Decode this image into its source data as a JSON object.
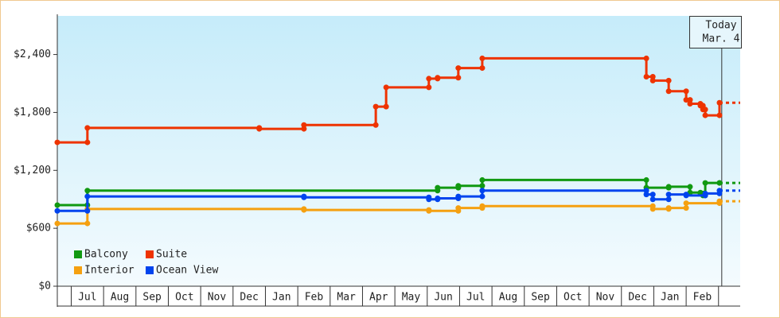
{
  "chart_data": {
    "type": "step-line",
    "xlim": [
      0.57,
      21.67
    ],
    "ylim": [
      0,
      2800
    ],
    "yticks": [
      {
        "value": 0,
        "label": "$0"
      },
      {
        "value": 600,
        "label": "$600"
      },
      {
        "value": 1200,
        "label": "$1,200"
      },
      {
        "value": 1800,
        "label": "$1,800"
      },
      {
        "value": 2400,
        "label": "$2,400"
      }
    ],
    "xticks": [
      {
        "value": 1,
        "label": "Jul"
      },
      {
        "value": 2,
        "label": "Aug"
      },
      {
        "value": 3,
        "label": "Sep"
      },
      {
        "value": 4,
        "label": "Oct"
      },
      {
        "value": 5,
        "label": "Nov"
      },
      {
        "value": 6,
        "label": "Dec"
      },
      {
        "value": 7,
        "label": "Jan"
      },
      {
        "value": 8,
        "label": "Feb"
      },
      {
        "value": 9,
        "label": "Mar"
      },
      {
        "value": 10,
        "label": "Apr"
      },
      {
        "value": 11,
        "label": "May"
      },
      {
        "value": 12,
        "label": "Jun"
      },
      {
        "value": 13,
        "label": "Jul"
      },
      {
        "value": 14,
        "label": "Aug"
      },
      {
        "value": 15,
        "label": "Sep"
      },
      {
        "value": 16,
        "label": "Oct"
      },
      {
        "value": 17,
        "label": "Nov"
      },
      {
        "value": 18,
        "label": "Dec"
      },
      {
        "value": 19,
        "label": "Jan"
      },
      {
        "value": 20,
        "label": "Feb"
      }
    ],
    "legend": "lower left",
    "annotation": {
      "text": [
        "Today",
        "Mar. 4"
      ],
      "x": 21.1
    },
    "series": [
      {
        "name": "Balcony",
        "color": "#119911",
        "x": [
          0.57,
          1.5,
          12.32,
          12.96,
          13.7,
          18.77,
          19.46,
          20.12,
          20.44,
          20.52,
          20.59,
          21.03
        ],
        "values": [
          840,
          990,
          1020,
          1040,
          1100,
          1020,
          1030,
          970,
          960,
          940,
          1070,
          1070
        ]
      },
      {
        "name": "Suite",
        "color": "#ee3300",
        "x": [
          0.57,
          1.5,
          6.81,
          8.19,
          10.41,
          10.73,
          12.05,
          12.32,
          12.96,
          13.7,
          18.77,
          18.97,
          19.46,
          20.0,
          20.12,
          20.44,
          20.52,
          20.59,
          21.03
        ],
        "values": [
          1490,
          1640,
          1630,
          1670,
          1860,
          2060,
          2150,
          2160,
          2260,
          2360,
          2170,
          2130,
          2020,
          1930,
          1890,
          1870,
          1830,
          1770,
          1900
        ]
      },
      {
        "name": "Interior",
        "color": "#f5a010",
        "x": [
          0.57,
          1.5,
          8.19,
          12.05,
          12.96,
          13.7,
          18.97,
          19.46,
          20.0,
          21.03
        ],
        "values": [
          650,
          800,
          790,
          780,
          810,
          830,
          800,
          810,
          860,
          880
        ]
      },
      {
        "name": "Ocean View",
        "color": "#0044ee",
        "x": [
          0.57,
          1.5,
          8.19,
          12.05,
          12.32,
          12.96,
          13.7,
          18.77,
          18.97,
          19.46,
          20.0,
          20.59,
          21.03
        ],
        "values": [
          780,
          930,
          920,
          900,
          910,
          930,
          990,
          950,
          900,
          950,
          940,
          960,
          990
        ]
      }
    ]
  }
}
